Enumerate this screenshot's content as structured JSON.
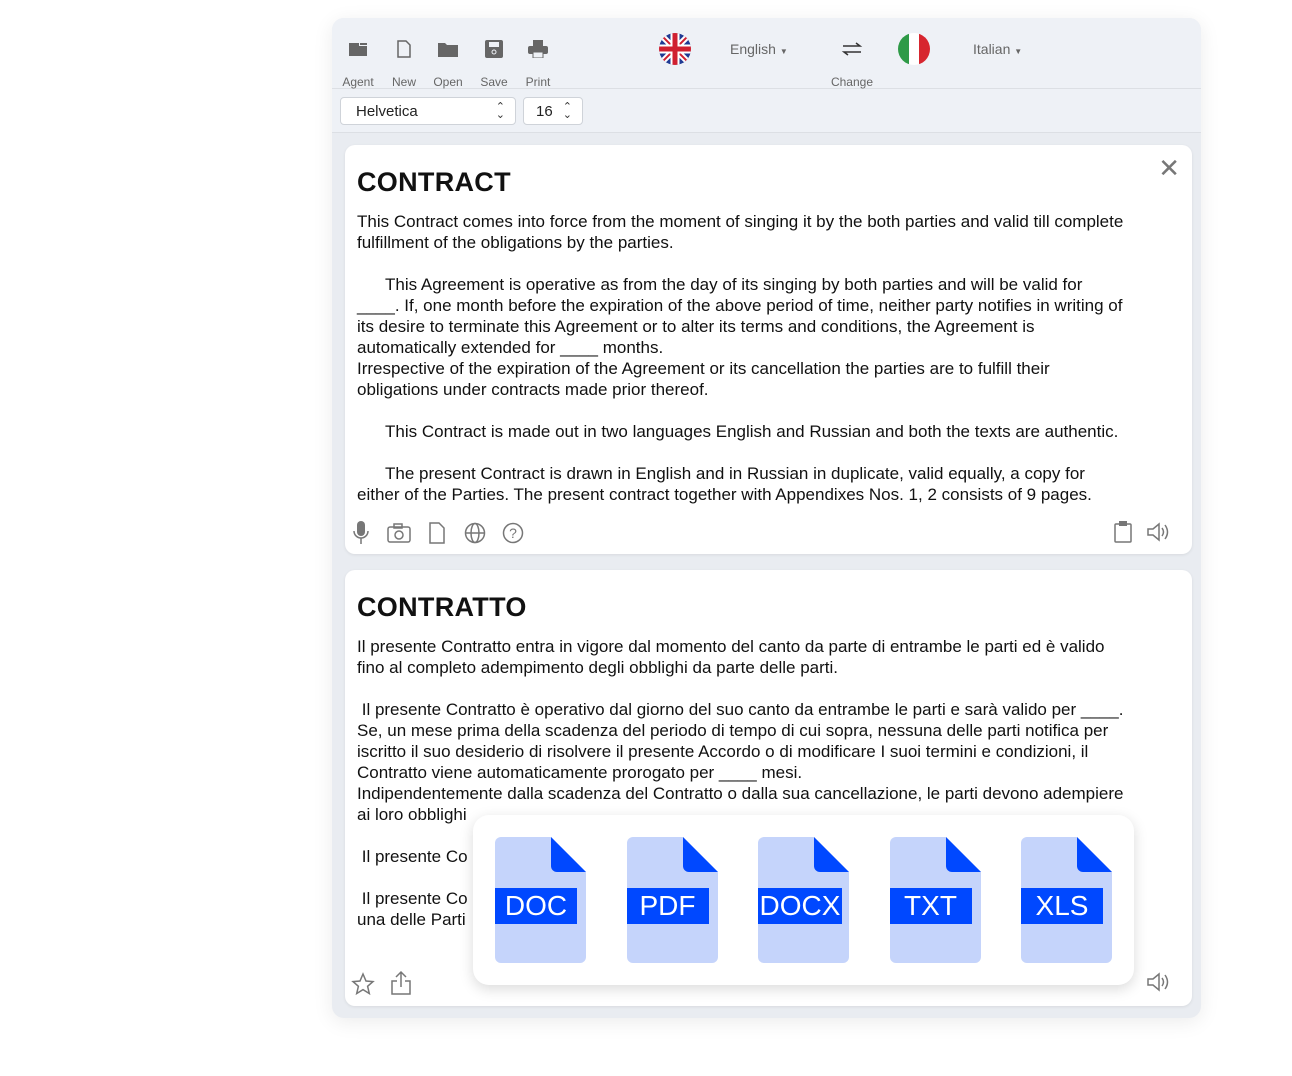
{
  "toolbar": {
    "items": [
      {
        "label": "Agent",
        "icon": "agent-icon"
      },
      {
        "label": "New",
        "icon": "new-file-icon"
      },
      {
        "label": "Open",
        "icon": "folder-icon"
      },
      {
        "label": "Save",
        "icon": "save-icon"
      },
      {
        "label": "Print",
        "icon": "printer-icon"
      }
    ],
    "source_lang": "English",
    "target_lang": "Italian",
    "swap_label": "Change"
  },
  "font": {
    "family": "Helvetica",
    "size": "16"
  },
  "source": {
    "title": "CONTRACT",
    "paragraphs": [
      [
        "This Contract comes into force from the moment of singing it by the both parties and valid till complete",
        "fulfillment of the obligations by the parties."
      ],
      [
        "      This Agreement is operative as from the day of its singing by both parties and will be valid for",
        "____. If, one month before the expiration of the above period of time, neither party notifies in writing of",
        "its desire to terminate this Agreement or to alter its terms and conditions, the Agreement is",
        "automatically extended for ____ months.",
        "Irrespective of the expiration of the Agreement or its cancellation the parties are to fulfill their",
        "obligations under contracts made prior thereof."
      ],
      [
        "      This Contract is made out in two languages English and Russian and both the texts are authentic."
      ],
      [
        "      The present Contract is drawn in English and in Russian in duplicate, valid equally, a copy for",
        "either of the Parties. The present contract together with Appendixes Nos. 1, 2 consists of 9 pages."
      ]
    ]
  },
  "target": {
    "title": "CONTRATTO",
    "paragraphs": [
      [
        "Il presente Contratto entra in vigore dal momento del canto da parte di entrambe le parti ed è valido",
        "fino al completo adempimento degli obblighi da parte delle parti."
      ],
      [
        " Il presente Contratto è operativo dal giorno del suo canto da entrambe le parti e sarà valido per ____.",
        "Se, un mese prima della scadenza del periodo di tempo di cui sopra, nessuna delle parti notifica per",
        "iscritto il suo desiderio di risolvere il presente Accordo o di modificare I suoi termini e condizioni, il",
        "Contratto viene automaticamente prorogato per ____ mesi.",
        "Indipendentemente dalla scadenza del Contratto o dalla sua cancellazione, le parti devono adempiere",
        "ai loro obblighi"
      ],
      [
        " Il presente Co"
      ],
      [
        " Il presente Co",
        "una delle Parti"
      ]
    ]
  },
  "export_formats": [
    "DOC",
    "PDF",
    "DOCX",
    "TXT",
    "XLS"
  ],
  "colors": {
    "accent": "#0048ff",
    "file_bg": "#c5d4fb",
    "icon": "#666666"
  }
}
